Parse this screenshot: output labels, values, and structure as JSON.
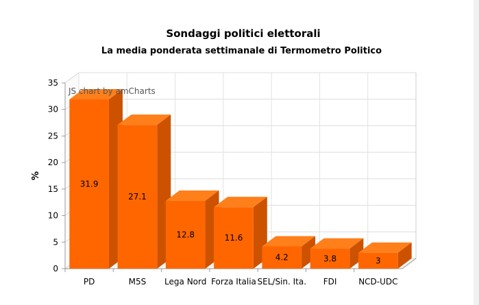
{
  "chart_data": {
    "type": "bar",
    "title": "Sondaggi politici elettorali",
    "subtitle": "La media ponderata settimanale di Termometro Politico",
    "ylabel": "%",
    "xlabel": "",
    "categories": [
      "PD",
      "M5S",
      "Lega Nord",
      "Forza Italia",
      "SEL/Sin. Ita.",
      "FDI",
      "NCD-UDC"
    ],
    "values": [
      31.9,
      27.1,
      12.8,
      11.6,
      4.2,
      3.8,
      3
    ],
    "ylim": [
      0,
      35
    ],
    "yticks": [
      0,
      5,
      10,
      15,
      20,
      25,
      30,
      35
    ],
    "grid": true,
    "legend": "none",
    "bar_style": "3d",
    "colors": {
      "front": "#ff6600",
      "top": "#ff7f1a",
      "side": "#cc5200"
    }
  },
  "credit": "JS chart by amCharts"
}
